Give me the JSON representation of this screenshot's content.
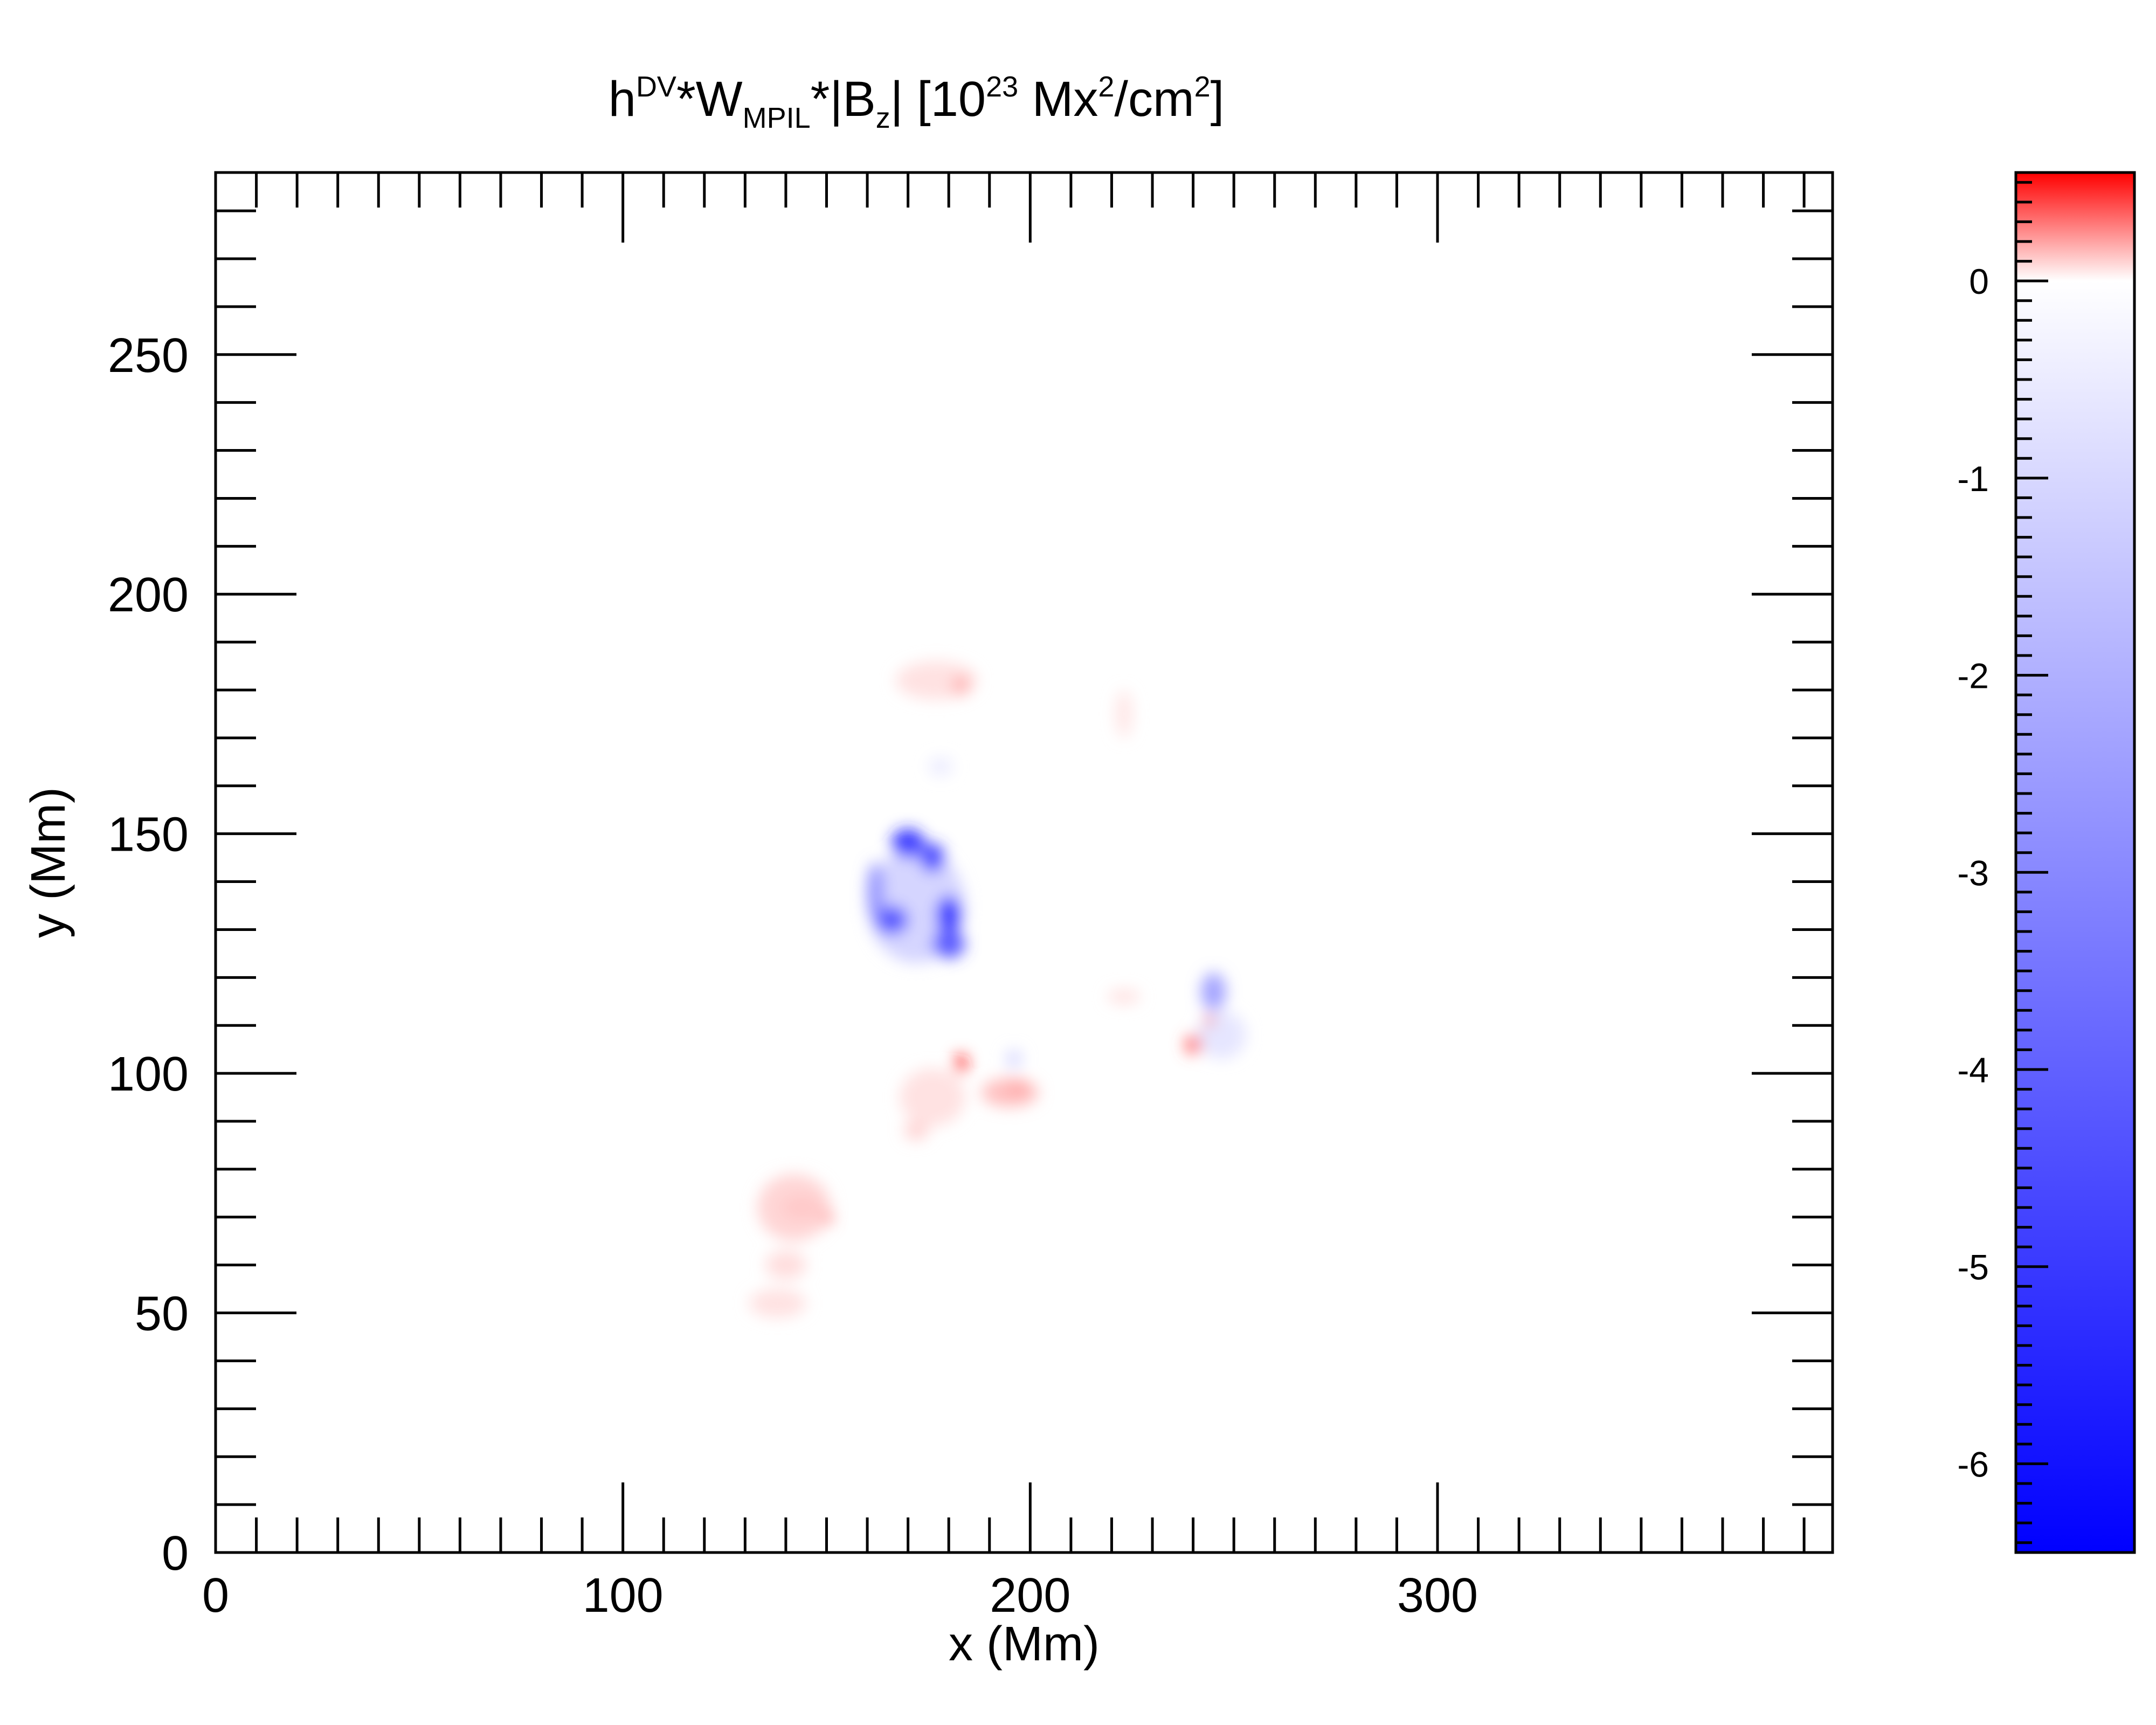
{
  "chart_data": {
    "type": "heatmap",
    "title_parts": {
      "h": "h",
      "dv": "DV",
      "star_w": "*W",
      "mpil": "MPIL",
      "star_bz": "*|B",
      "z": "z",
      "bar_open": "|  [10",
      "exp23": "23",
      "mx": " Mx",
      "sq1": "2",
      "cm": "/cm",
      "sq2": "2",
      "close": "]"
    },
    "xlabel": "x (Mm)",
    "ylabel": "y (Mm)",
    "xlim": [
      0,
      397
    ],
    "ylim": [
      0,
      288
    ],
    "x_ticks": [
      0,
      100,
      200,
      300
    ],
    "x_tick_labels": [
      "0",
      "100",
      "200",
      "300"
    ],
    "y_ticks": [
      0,
      50,
      100,
      150,
      200,
      250
    ],
    "y_tick_labels": [
      "0",
      "50",
      "100",
      "150",
      "200",
      "250"
    ],
    "colorbar": {
      "range": [
        -6.45,
        0.55
      ],
      "ticks": [
        0,
        -1,
        -2,
        -3,
        -4,
        -5,
        -6
      ],
      "tick_labels": [
        "0",
        "-1",
        "-2",
        "-3",
        "-4",
        "-5",
        "-6"
      ],
      "positive_color": "#ff0000",
      "zero_color": "#ffffff",
      "negative_color": "#0000ff"
    },
    "blobs": [
      {
        "x": 172,
        "y": 135,
        "sx": 12,
        "sy": 12,
        "value": -1.2
      },
      {
        "x": 170,
        "y": 148,
        "sx": 4,
        "sy": 3,
        "value": -5.5
      },
      {
        "x": 176,
        "y": 145,
        "sx": 3,
        "sy": 3,
        "value": -5.0
      },
      {
        "x": 166,
        "y": 132,
        "sx": 4,
        "sy": 3,
        "value": -4.5
      },
      {
        "x": 180,
        "y": 133,
        "sx": 3,
        "sy": 4,
        "value": -5.5
      },
      {
        "x": 180,
        "y": 127,
        "sx": 4,
        "sy": 3,
        "value": -4.5
      },
      {
        "x": 162,
        "y": 138,
        "sx": 2,
        "sy": 6,
        "value": -3.0
      },
      {
        "x": 245,
        "y": 117,
        "sx": 3,
        "sy": 4,
        "value": -2.6
      },
      {
        "x": 247,
        "y": 108,
        "sx": 6,
        "sy": 5,
        "value": -0.7
      },
      {
        "x": 196,
        "y": 103,
        "sx": 2,
        "sy": 2,
        "value": -1.0
      },
      {
        "x": 178,
        "y": 164,
        "sx": 3,
        "sy": 2,
        "value": -0.5
      },
      {
        "x": 150,
        "y": 70,
        "sx": 1.5,
        "sy": 1.5,
        "value": 0.55
      },
      {
        "x": 144,
        "y": 72,
        "sx": 5,
        "sy": 2.5,
        "value": 0.3
      },
      {
        "x": 142,
        "y": 72,
        "sx": 9,
        "sy": 7,
        "value": 0.1
      },
      {
        "x": 140,
        "y": 60,
        "sx": 5,
        "sy": 3,
        "value": 0.08
      },
      {
        "x": 138,
        "y": 52,
        "sx": 7,
        "sy": 3,
        "value": 0.07
      },
      {
        "x": 197,
        "y": 97,
        "sx": 2.5,
        "sy": 1.5,
        "value": 0.55
      },
      {
        "x": 195,
        "y": 96,
        "sx": 7,
        "sy": 3,
        "value": 0.15
      },
      {
        "x": 183,
        "y": 102,
        "sx": 1.5,
        "sy": 2,
        "value": 0.5
      },
      {
        "x": 176,
        "y": 95,
        "sx": 8,
        "sy": 6,
        "value": 0.07
      },
      {
        "x": 172,
        "y": 88,
        "sx": 3,
        "sy": 2,
        "value": 0.1
      },
      {
        "x": 240,
        "y": 106,
        "sx": 2,
        "sy": 2,
        "value": 0.35
      },
      {
        "x": 244,
        "y": 111,
        "sx": 1,
        "sy": 1,
        "value": 0.55
      },
      {
        "x": 223,
        "y": 116,
        "sx": 4,
        "sy": 1.5,
        "value": 0.07
      },
      {
        "x": 177,
        "y": 182,
        "sx": 10,
        "sy": 4,
        "value": 0.07
      },
      {
        "x": 183,
        "y": 181,
        "sx": 2,
        "sy": 2,
        "value": 0.18
      },
      {
        "x": 223,
        "y": 175,
        "sx": 2,
        "sy": 5,
        "value": 0.06
      }
    ]
  }
}
